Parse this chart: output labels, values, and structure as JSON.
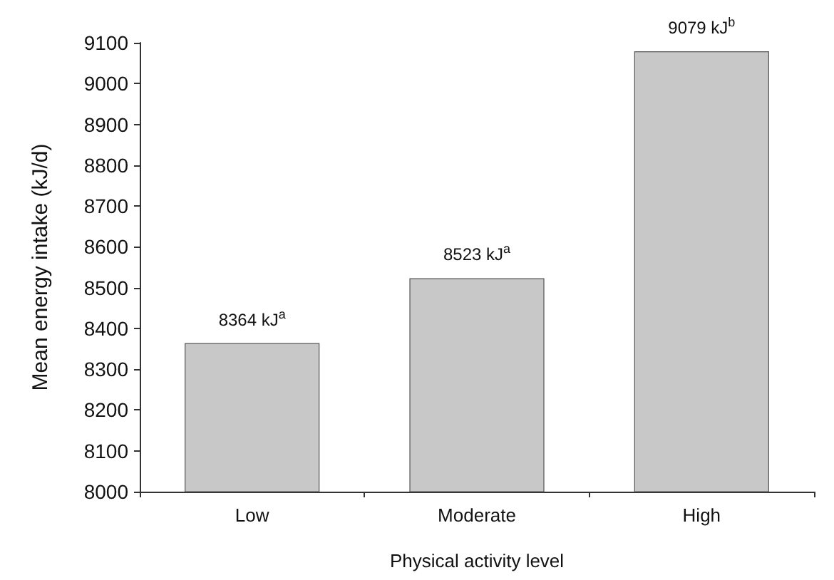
{
  "chart_data": {
    "type": "bar",
    "xlabel": "Physical activity level",
    "ylabel": "Mean energy intake (kJ/d)",
    "categories": [
      "Low",
      "Moderate",
      "High"
    ],
    "values": [
      8364,
      8523,
      9079
    ],
    "value_labels": [
      "8364 kJ$^{a}$",
      "8523 kJ$^{a}$",
      "9079 kJ$^{b}$"
    ],
    "color": "#c8c8c8",
    "ylim": [
      8000,
      9100
    ],
    "yticks": [
      8000,
      8100,
      8200,
      8300,
      8400,
      8500,
      8600,
      8700,
      8800,
      8900,
      9000,
      9100
    ],
    "grid": false
  }
}
